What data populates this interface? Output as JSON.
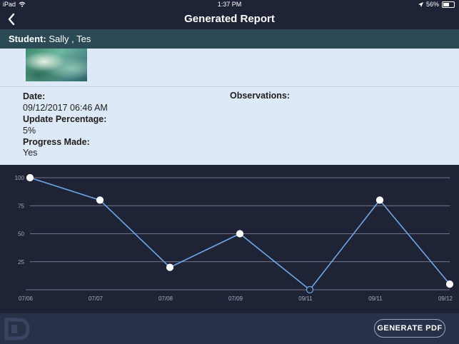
{
  "status_bar": {
    "device": "iPad",
    "time": "1:37 PM",
    "battery_text": "56%",
    "battery_level": 0.56
  },
  "nav": {
    "title": "Generated Report"
  },
  "student": {
    "label": "Student:",
    "name": "Sally , Tes"
  },
  "details": {
    "date_label": "Date:",
    "date_value": "09/12/2017 06:46 AM",
    "update_label": "Update Percentage:",
    "update_value": "5%",
    "progress_label": "Progress Made:",
    "progress_value": "Yes",
    "observations_label": "Observations:"
  },
  "chart_data": {
    "type": "line",
    "categories": [
      "07/06",
      "07/07",
      "07/08",
      "07/09",
      "09/11",
      "09/11",
      "09/12"
    ],
    "series": [
      {
        "values": [
          100,
          80,
          20,
          50,
          0,
          80,
          5
        ]
      }
    ],
    "yticks": [
      100,
      75,
      50,
      25
    ],
    "ylim": [
      0,
      100
    ],
    "grid": true,
    "title": "",
    "xlabel": "",
    "ylabel": "",
    "colors": {
      "line": "#6ea8e8",
      "grid": "#8c93a6",
      "point": "#ffffff"
    }
  },
  "footer": {
    "generate_pdf_label": "GENERATE PDF"
  },
  "colors": {
    "background": "#1f2336",
    "student_bar": "#2b4a55",
    "info_panel": "#dde9f6",
    "footer": "#283148"
  }
}
